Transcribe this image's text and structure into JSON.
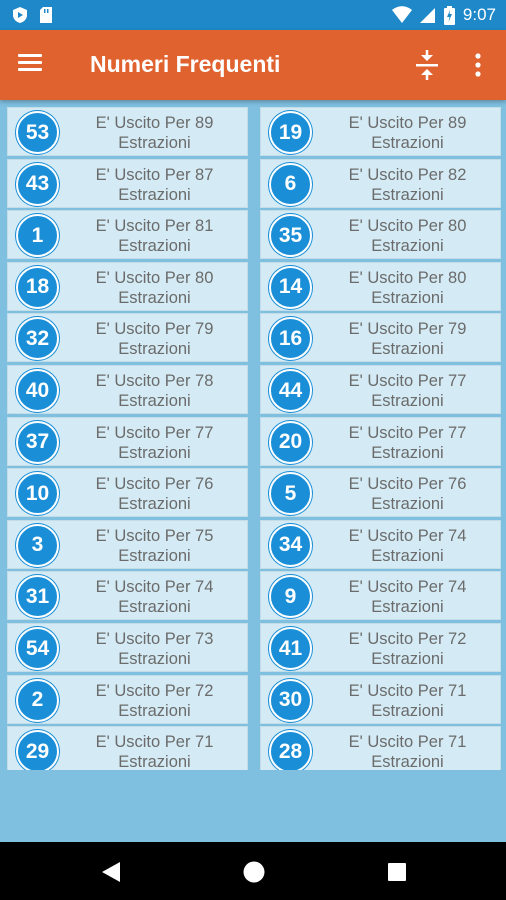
{
  "status_bar": {
    "time": "9:07",
    "icons": [
      "shield-play-icon",
      "sd-card-icon",
      "wifi-icon",
      "signal-icon",
      "battery-charging-icon"
    ]
  },
  "app_bar": {
    "title": "Numeri Frequenti",
    "icons": [
      "menu-icon",
      "compress-vertical-icon",
      "more-vert-icon"
    ]
  },
  "colors": {
    "app_bar": "#e0622f",
    "status_bar": "#1e88c8",
    "ball": "#1a8fd8",
    "card_bg": "#d4ebf5",
    "page_bg": "#7fbfdf"
  },
  "items": [
    {
      "number": "53",
      "line1": "E' Uscito Per 89",
      "line2": "Estrazioni"
    },
    {
      "number": "19",
      "line1": "E' Uscito Per 89",
      "line2": "Estrazioni"
    },
    {
      "number": "43",
      "line1": "E' Uscito Per 87",
      "line2": "Estrazioni"
    },
    {
      "number": "6",
      "line1": "E' Uscito Per 82",
      "line2": "Estrazioni"
    },
    {
      "number": "1",
      "line1": "E' Uscito Per 81",
      "line2": "Estrazioni"
    },
    {
      "number": "35",
      "line1": "E' Uscito Per 80",
      "line2": "Estrazioni"
    },
    {
      "number": "18",
      "line1": "E' Uscito Per 80",
      "line2": "Estrazioni"
    },
    {
      "number": "14",
      "line1": "E' Uscito Per 80",
      "line2": "Estrazioni"
    },
    {
      "number": "32",
      "line1": "E' Uscito Per 79",
      "line2": "Estrazioni"
    },
    {
      "number": "16",
      "line1": "E' Uscito Per 79",
      "line2": "Estrazioni"
    },
    {
      "number": "40",
      "line1": "E' Uscito Per 78",
      "line2": "Estrazioni"
    },
    {
      "number": "44",
      "line1": "E' Uscito Per 77",
      "line2": "Estrazioni"
    },
    {
      "number": "37",
      "line1": "E' Uscito Per 77",
      "line2": "Estrazioni"
    },
    {
      "number": "20",
      "line1": "E' Uscito Per 77",
      "line2": "Estrazioni"
    },
    {
      "number": "10",
      "line1": "E' Uscito Per 76",
      "line2": "Estrazioni"
    },
    {
      "number": "5",
      "line1": "E' Uscito Per 76",
      "line2": "Estrazioni"
    },
    {
      "number": "3",
      "line1": "E' Uscito Per 75",
      "line2": "Estrazioni"
    },
    {
      "number": "34",
      "line1": "E' Uscito Per 74",
      "line2": "Estrazioni"
    },
    {
      "number": "31",
      "line1": "E' Uscito Per 74",
      "line2": "Estrazioni"
    },
    {
      "number": "9",
      "line1": "E' Uscito Per 74",
      "line2": "Estrazioni"
    },
    {
      "number": "54",
      "line1": "E' Uscito Per 73",
      "line2": "Estrazioni"
    },
    {
      "number": "41",
      "line1": "E' Uscito Per 72",
      "line2": "Estrazioni"
    },
    {
      "number": "2",
      "line1": "E' Uscito Per 72",
      "line2": "Estrazioni"
    },
    {
      "number": "30",
      "line1": "E' Uscito Per 71",
      "line2": "Estrazioni"
    },
    {
      "number": "29",
      "line1": "E' Uscito Per 71",
      "line2": "Estrazioni"
    },
    {
      "number": "28",
      "line1": "E' Uscito Per 71",
      "line2": "Estrazioni"
    }
  ],
  "nav_bar": {
    "icons": [
      "back-icon",
      "home-icon",
      "recents-icon"
    ]
  }
}
